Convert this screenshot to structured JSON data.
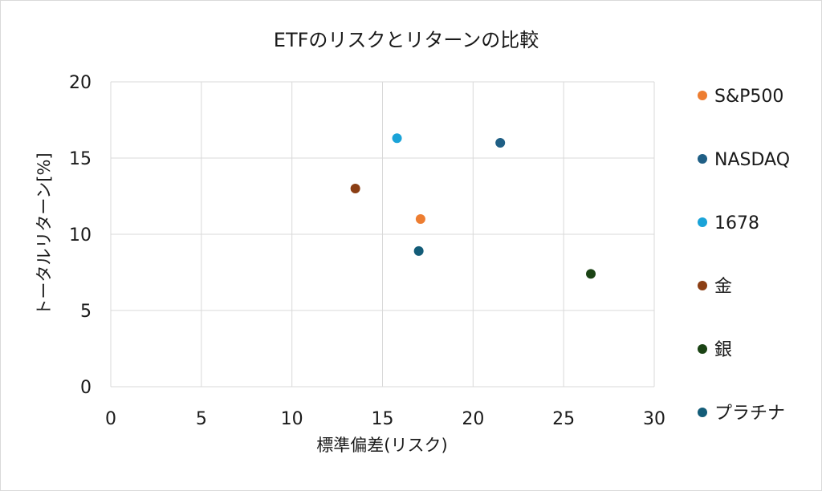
{
  "chart_data": {
    "type": "scatter",
    "title": "ETFのリスクとリターンの比較",
    "xlabel": "標準偏差(リスク)",
    "ylabel": "トータルリターン[%]",
    "xlim": [
      0,
      30
    ],
    "ylim": [
      0,
      20
    ],
    "xticks": [
      0,
      5,
      10,
      15,
      20,
      25,
      30
    ],
    "yticks": [
      0,
      5,
      10,
      15,
      20
    ],
    "grid": true,
    "legend_position": "right",
    "series": [
      {
        "name": "S&P500",
        "color": "#ED7D31",
        "points": [
          {
            "x": 17.1,
            "y": 11.0
          }
        ]
      },
      {
        "name": "NASDAQ",
        "color": "#1F5F85",
        "points": [
          {
            "x": 21.5,
            "y": 16.0
          }
        ]
      },
      {
        "name": "1678",
        "color": "#1AA3D8",
        "points": [
          {
            "x": 15.8,
            "y": 16.3
          }
        ]
      },
      {
        "name": "金",
        "color": "#8B3E14",
        "points": [
          {
            "x": 13.5,
            "y": 13.0
          }
        ]
      },
      {
        "name": "銀",
        "color": "#1A4314",
        "points": [
          {
            "x": 26.5,
            "y": 7.4
          }
        ]
      },
      {
        "name": "プラチナ",
        "color": "#135C78",
        "points": [
          {
            "x": 17.0,
            "y": 8.9
          }
        ]
      }
    ]
  }
}
